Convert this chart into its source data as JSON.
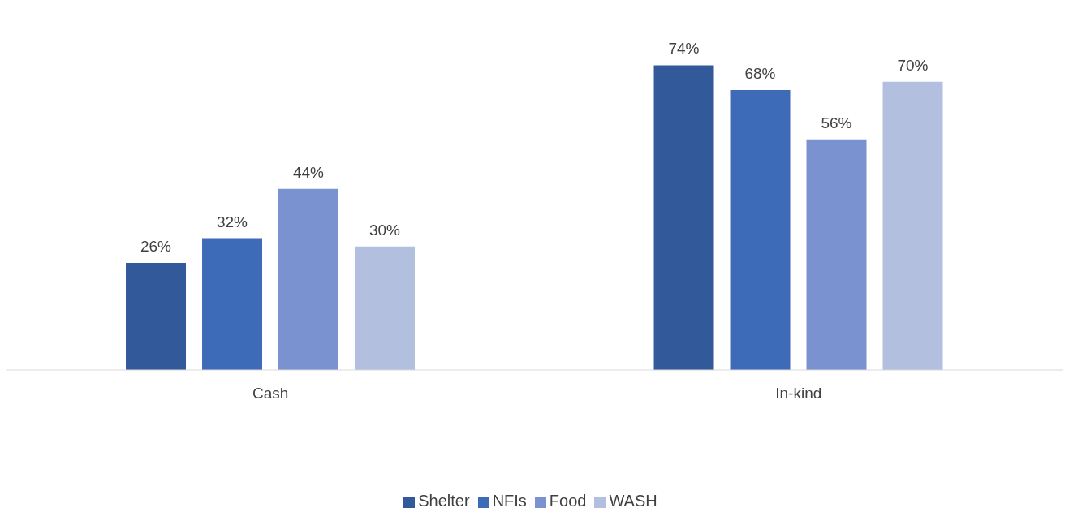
{
  "chart_data": {
    "type": "bar",
    "categories": [
      "Cash",
      "In-kind"
    ],
    "series": [
      {
        "name": "Shelter",
        "color": "#325a9a",
        "values": [
          26,
          74
        ],
        "value_labels": [
          "26%",
          "74%"
        ]
      },
      {
        "name": "NFIs",
        "color": "#3e6bb8",
        "values": [
          32,
          68
        ],
        "value_labels": [
          "32%",
          "68%"
        ]
      },
      {
        "name": "Food",
        "color": "#7a92cf",
        "values": [
          44,
          56
        ],
        "value_labels": [
          "44%",
          "56%"
        ]
      },
      {
        "name": "WASH",
        "color": "#b3bfdf",
        "values": [
          30,
          70
        ],
        "value_labels": [
          "30%",
          "70%"
        ]
      }
    ],
    "legend": "bottom",
    "grid": false
  }
}
